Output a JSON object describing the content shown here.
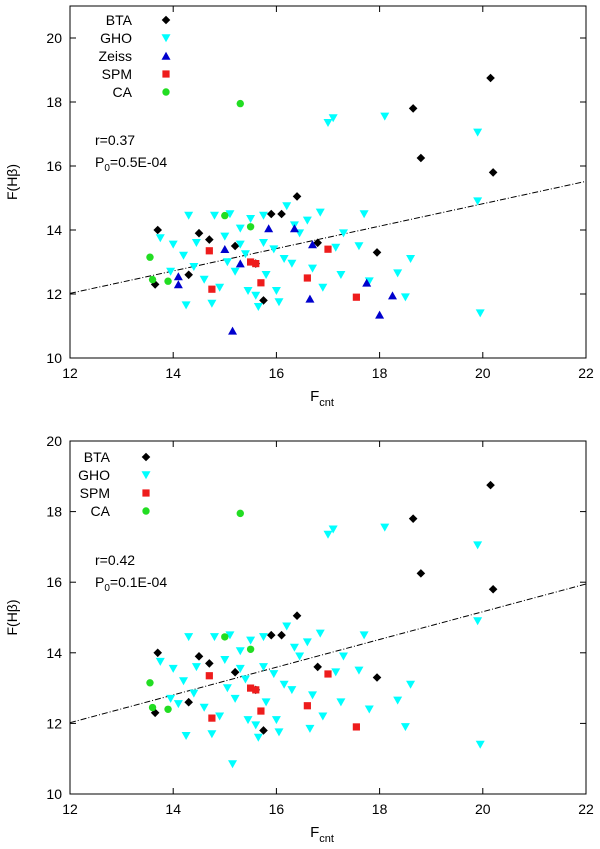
{
  "chart_data": [
    {
      "type": "scatter",
      "xlabel": "F",
      "xlabel_sub": "cnt",
      "ylabel": "F(Hβ)",
      "xlim": [
        12,
        22
      ],
      "ylim": [
        10,
        21
      ],
      "xticks": [
        12,
        14,
        16,
        18,
        20,
        22
      ],
      "yticks": [
        10,
        12,
        14,
        16,
        18,
        20
      ],
      "grid": false,
      "legend_position": "top-left",
      "annotation": {
        "r_text": "r=0.37",
        "p_prefix": "P",
        "p_sub": "0",
        "p_value": "=0.5E-04"
      },
      "fit_line": {
        "x": [
          12,
          22
        ],
        "y": [
          12.02,
          15.52
        ]
      },
      "series": [
        {
          "name": "BTA",
          "marker": "diamond",
          "color": "#000000",
          "points": [
            [
              13.7,
              14.0
            ],
            [
              13.65,
              12.3
            ],
            [
              14.3,
              12.6
            ],
            [
              14.5,
              13.9
            ],
            [
              14.7,
              13.7
            ],
            [
              15.2,
              13.5
            ],
            [
              15.6,
              12.95
            ],
            [
              15.75,
              11.8
            ],
            [
              15.9,
              14.5
            ],
            [
              16.1,
              14.5
            ],
            [
              16.4,
              15.05
            ],
            [
              16.8,
              13.6
            ],
            [
              17.95,
              13.3
            ],
            [
              18.65,
              17.8
            ],
            [
              18.8,
              16.25
            ],
            [
              20.15,
              18.75
            ],
            [
              20.2,
              15.8
            ]
          ]
        },
        {
          "name": "GHO",
          "marker": "triangle-down",
          "color": "#00ffff",
          "points": [
            [
              17.0,
              17.35
            ],
            [
              17.1,
              17.5
            ],
            [
              18.1,
              17.55
            ],
            [
              19.9,
              17.05
            ],
            [
              19.9,
              14.9
            ],
            [
              19.95,
              11.4
            ],
            [
              18.6,
              13.1
            ],
            [
              18.5,
              11.9
            ],
            [
              18.35,
              12.65
            ],
            [
              17.8,
              12.4
            ],
            [
              17.6,
              13.5
            ],
            [
              17.7,
              14.5
            ],
            [
              17.3,
              13.9
            ],
            [
              17.15,
              13.45
            ],
            [
              16.85,
              14.55
            ],
            [
              16.6,
              14.3
            ],
            [
              16.45,
              13.9
            ],
            [
              16.3,
              12.95
            ],
            [
              16.0,
              12.1
            ],
            [
              15.8,
              12.6
            ],
            [
              15.75,
              14.45
            ],
            [
              15.5,
              14.35
            ],
            [
              15.3,
              14.05
            ],
            [
              15.1,
              14.5
            ],
            [
              14.8,
              14.45
            ],
            [
              14.3,
              14.45
            ],
            [
              14.0,
              13.55
            ],
            [
              14.2,
              13.2
            ],
            [
              14.4,
              12.85
            ],
            [
              14.6,
              12.45
            ],
            [
              14.9,
              12.2
            ],
            [
              14.25,
              11.65
            ],
            [
              14.75,
              11.7
            ],
            [
              13.75,
              13.75
            ],
            [
              13.95,
              12.7
            ],
            [
              15.05,
              13.0
            ],
            [
              15.2,
              12.7
            ],
            [
              15.4,
              13.25
            ],
            [
              15.45,
              12.1
            ],
            [
              15.6,
              11.95
            ],
            [
              15.75,
              13.6
            ],
            [
              15.95,
              13.4
            ],
            [
              16.15,
              13.1
            ],
            [
              16.7,
              12.8
            ],
            [
              16.9,
              12.2
            ],
            [
              17.25,
              12.6
            ],
            [
              15.65,
              11.6
            ],
            [
              16.05,
              11.75
            ],
            [
              15.0,
              13.8
            ],
            [
              14.45,
              13.6
            ],
            [
              15.3,
              13.55
            ],
            [
              16.35,
              14.15
            ],
            [
              16.2,
              14.75
            ]
          ]
        },
        {
          "name": "Zeiss",
          "marker": "triangle-up",
          "color": "#0000cd",
          "points": [
            [
              14.1,
              12.55
            ],
            [
              14.1,
              12.3
            ],
            [
              15.0,
              13.4
            ],
            [
              15.3,
              12.95
            ],
            [
              15.15,
              10.85
            ],
            [
              15.85,
              14.05
            ],
            [
              16.35,
              14.05
            ],
            [
              16.7,
              13.55
            ],
            [
              16.65,
              11.85
            ],
            [
              17.75,
              12.35
            ],
            [
              18.0,
              11.35
            ],
            [
              18.25,
              11.95
            ]
          ]
        },
        {
          "name": "SPM",
          "marker": "square",
          "color": "#ee1c1c",
          "points": [
            [
              14.75,
              12.15
            ],
            [
              14.7,
              13.35
            ],
            [
              15.5,
              13.0
            ],
            [
              15.6,
              12.95
            ],
            [
              15.7,
              12.35
            ],
            [
              16.6,
              12.5
            ],
            [
              17.0,
              13.4
            ],
            [
              17.55,
              11.9
            ]
          ]
        },
        {
          "name": "CA",
          "marker": "circle",
          "color": "#22dd22",
          "points": [
            [
              13.55,
              13.15
            ],
            [
              13.6,
              12.45
            ],
            [
              13.9,
              12.4
            ],
            [
              15.0,
              14.45
            ],
            [
              15.5,
              14.1
            ],
            [
              15.3,
              17.95
            ]
          ]
        }
      ]
    },
    {
      "type": "scatter",
      "xlabel": "F",
      "xlabel_sub": "cnt",
      "ylabel": "F(Hβ)",
      "xlim": [
        12,
        22
      ],
      "ylim": [
        10,
        20
      ],
      "xticks": [
        12,
        14,
        16,
        18,
        20,
        22
      ],
      "yticks": [
        10,
        12,
        14,
        16,
        18,
        20
      ],
      "grid": false,
      "legend_position": "top-left",
      "annotation": {
        "r_text": "r=0.42",
        "p_prefix": "P",
        "p_sub": "0",
        "p_value": "=0.1E-04"
      },
      "fit_line": {
        "x": [
          12,
          22
        ],
        "y": [
          12.02,
          15.95
        ]
      },
      "series": [
        {
          "name": "BTA",
          "marker": "diamond",
          "color": "#000000",
          "points": [
            [
              13.7,
              14.0
            ],
            [
              13.65,
              12.3
            ],
            [
              14.3,
              12.6
            ],
            [
              14.5,
              13.9
            ],
            [
              14.7,
              13.7
            ],
            [
              15.2,
              13.45
            ],
            [
              15.6,
              12.95
            ],
            [
              15.75,
              11.8
            ],
            [
              15.9,
              14.5
            ],
            [
              16.1,
              14.5
            ],
            [
              16.4,
              15.05
            ],
            [
              16.8,
              13.6
            ],
            [
              17.95,
              13.3
            ],
            [
              18.65,
              17.8
            ],
            [
              18.8,
              16.25
            ],
            [
              20.15,
              18.75
            ],
            [
              20.2,
              15.8
            ]
          ]
        },
        {
          "name": "GHO",
          "marker": "triangle-down",
          "color": "#00ffff",
          "points": [
            [
              17.0,
              17.35
            ],
            [
              17.1,
              17.5
            ],
            [
              18.1,
              17.55
            ],
            [
              19.9,
              17.05
            ],
            [
              19.9,
              14.9
            ],
            [
              19.95,
              11.4
            ],
            [
              18.6,
              13.1
            ],
            [
              18.5,
              11.9
            ],
            [
              18.35,
              12.65
            ],
            [
              17.8,
              12.4
            ],
            [
              17.6,
              13.5
            ],
            [
              17.7,
              14.5
            ],
            [
              17.3,
              13.9
            ],
            [
              17.15,
              13.45
            ],
            [
              16.85,
              14.55
            ],
            [
              16.6,
              14.3
            ],
            [
              16.45,
              13.9
            ],
            [
              16.3,
              12.95
            ],
            [
              16.0,
              12.1
            ],
            [
              15.8,
              12.6
            ],
            [
              15.75,
              14.45
            ],
            [
              15.5,
              14.35
            ],
            [
              15.3,
              14.05
            ],
            [
              15.1,
              14.5
            ],
            [
              14.8,
              14.45
            ],
            [
              14.3,
              14.45
            ],
            [
              14.0,
              13.55
            ],
            [
              14.2,
              13.2
            ],
            [
              14.4,
              12.85
            ],
            [
              14.6,
              12.45
            ],
            [
              14.9,
              12.2
            ],
            [
              14.25,
              11.65
            ],
            [
              14.75,
              11.7
            ],
            [
              13.75,
              13.75
            ],
            [
              13.95,
              12.7
            ],
            [
              15.05,
              13.0
            ],
            [
              15.2,
              12.7
            ],
            [
              15.4,
              13.25
            ],
            [
              15.45,
              12.1
            ],
            [
              15.6,
              11.95
            ],
            [
              15.75,
              13.6
            ],
            [
              15.95,
              13.4
            ],
            [
              16.15,
              13.1
            ],
            [
              16.7,
              12.8
            ],
            [
              16.9,
              12.2
            ],
            [
              17.25,
              12.6
            ],
            [
              15.65,
              11.6
            ],
            [
              16.05,
              11.75
            ],
            [
              15.0,
              13.8
            ],
            [
              14.45,
              13.6
            ],
            [
              15.3,
              13.55
            ],
            [
              16.35,
              14.15
            ],
            [
              16.2,
              14.75
            ],
            [
              14.1,
              12.55
            ],
            [
              15.15,
              10.85
            ],
            [
              16.65,
              11.85
            ]
          ]
        },
        {
          "name": "SPM",
          "marker": "square",
          "color": "#ee1c1c",
          "points": [
            [
              14.75,
              12.15
            ],
            [
              14.7,
              13.35
            ],
            [
              15.5,
              13.0
            ],
            [
              15.6,
              12.95
            ],
            [
              15.7,
              12.35
            ],
            [
              16.6,
              12.5
            ],
            [
              17.0,
              13.4
            ],
            [
              17.55,
              11.9
            ]
          ]
        },
        {
          "name": "CA",
          "marker": "circle",
          "color": "#22dd22",
          "points": [
            [
              13.55,
              13.15
            ],
            [
              13.6,
              12.45
            ],
            [
              13.9,
              12.4
            ],
            [
              15.0,
              14.45
            ],
            [
              15.5,
              14.1
            ],
            [
              15.3,
              17.95
            ]
          ]
        }
      ]
    }
  ]
}
